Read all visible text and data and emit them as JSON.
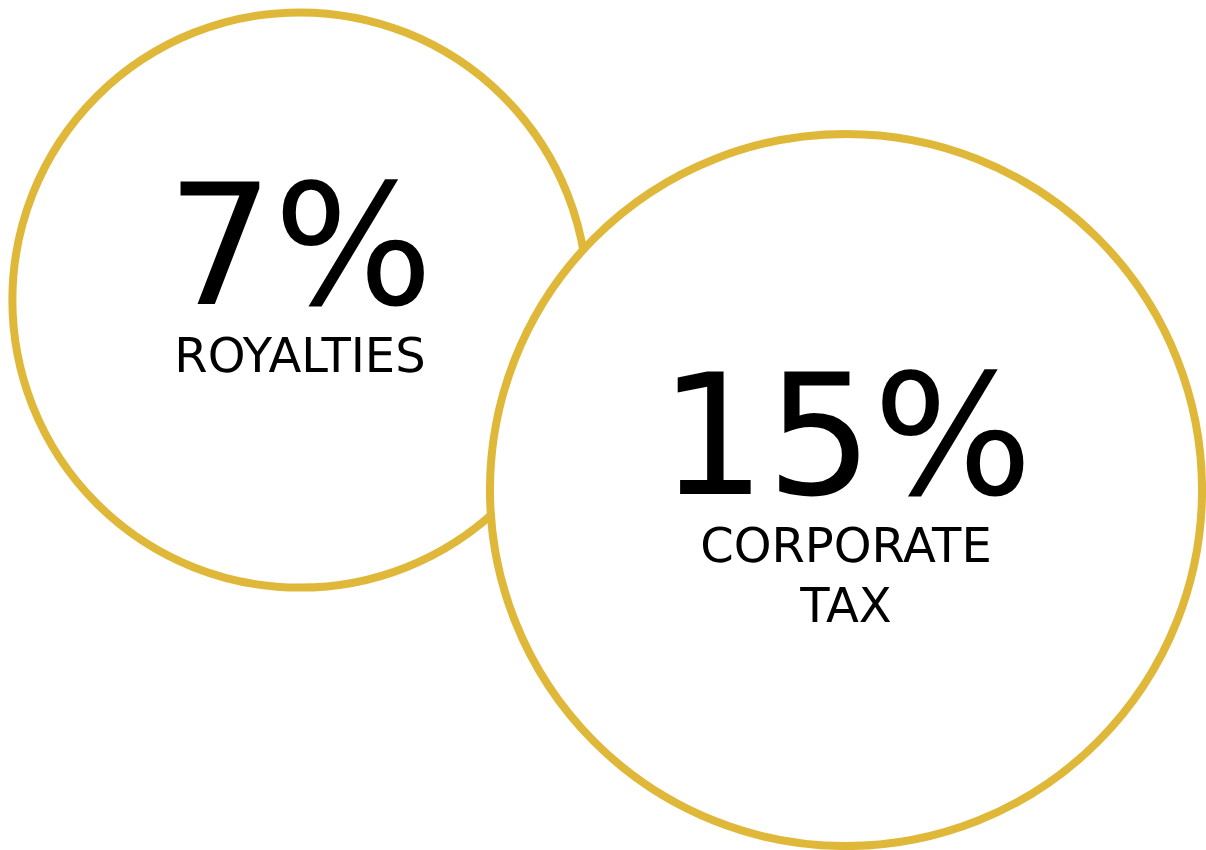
{
  "chart_data": {
    "type": "other",
    "categories": [
      "ROYALTIES",
      "CORPORATE TAX"
    ],
    "values": [
      7,
      15
    ],
    "value_labels": [
      "7%",
      "15%"
    ],
    "color": "#dfb83a"
  }
}
